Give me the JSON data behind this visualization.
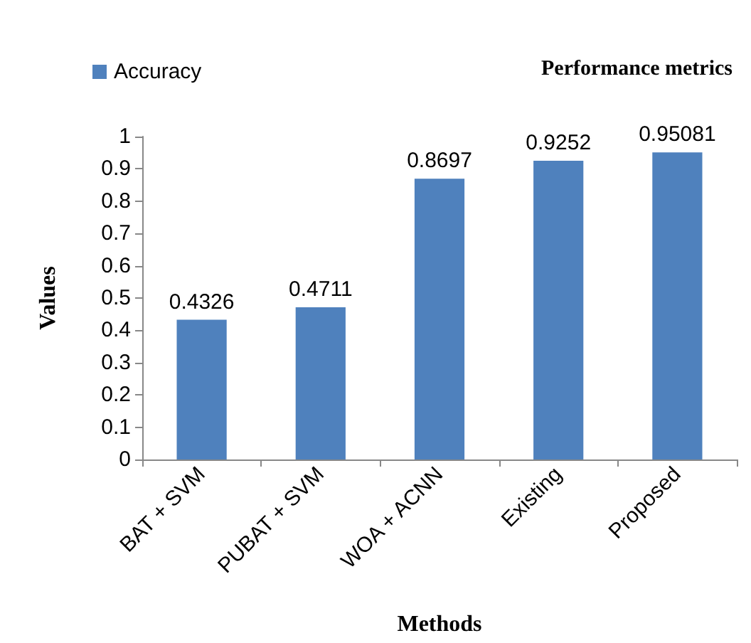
{
  "chart_data": {
    "type": "bar",
    "title": "Performance metrics",
    "xlabel": "Methods",
    "ylabel": "Values",
    "categories": [
      "BAT + SVM",
      "PUBAT + SVM",
      "WOA + ACNN",
      "Existing",
      "Proposed"
    ],
    "series": [
      {
        "name": "Accuracy",
        "color": "#4f81bd",
        "values": [
          0.4326,
          0.4711,
          0.8697,
          0.9252,
          0.95081
        ]
      }
    ],
    "ylim": [
      0,
      1
    ],
    "yticks": [
      0,
      0.1,
      0.2,
      0.3,
      0.4,
      0.5,
      0.6,
      0.7,
      0.8,
      0.9,
      1
    ],
    "data_labels": true,
    "legend": "top left",
    "grid": false
  }
}
